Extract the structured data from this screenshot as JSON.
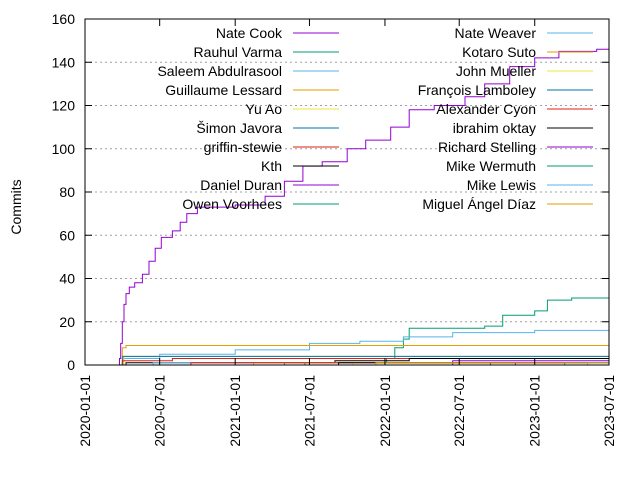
{
  "chart_data": {
    "type": "line",
    "ylabel": "Commits",
    "xlabel": "",
    "title": "",
    "xlim": [
      "2020-01-01",
      "2023-07-01"
    ],
    "ylim": [
      0,
      160
    ],
    "yticks": [
      0,
      20,
      40,
      60,
      80,
      100,
      120,
      140,
      160
    ],
    "xticks": [
      "2020-01-01",
      "2020-07-01",
      "2021-01-01",
      "2021-07-01",
      "2022-01-01",
      "2022-07-01",
      "2023-01-01",
      "2023-07-01"
    ],
    "grid": "horizontal-dotted",
    "legend_placement": "top, two columns",
    "series": [
      {
        "name": "Nate Cook",
        "color": "#9400d3",
        "step": true,
        "points": [
          [
            "2020-03-20",
            0
          ],
          [
            "2020-03-25",
            3
          ],
          [
            "2020-03-28",
            10
          ],
          [
            "2020-04-01",
            20
          ],
          [
            "2020-04-05",
            28
          ],
          [
            "2020-04-10",
            33
          ],
          [
            "2020-04-18",
            36
          ],
          [
            "2020-05-01",
            38
          ],
          [
            "2020-05-20",
            42
          ],
          [
            "2020-06-05",
            48
          ],
          [
            "2020-06-20",
            54
          ],
          [
            "2020-07-05",
            59
          ],
          [
            "2020-08-01",
            62
          ],
          [
            "2020-08-20",
            66
          ],
          [
            "2020-09-05",
            70
          ],
          [
            "2020-10-01",
            73
          ],
          [
            "2021-01-01",
            74
          ],
          [
            "2021-03-15",
            78
          ],
          [
            "2021-05-01",
            85
          ],
          [
            "2021-06-15",
            92
          ],
          [
            "2021-08-01",
            94
          ],
          [
            "2021-10-01",
            100
          ],
          [
            "2021-11-15",
            104
          ],
          [
            "2022-01-15",
            110
          ],
          [
            "2022-03-01",
            118
          ],
          [
            "2022-05-01",
            120
          ],
          [
            "2022-07-15",
            124
          ],
          [
            "2022-09-01",
            130
          ],
          [
            "2022-11-01",
            138
          ],
          [
            "2023-01-01",
            142
          ],
          [
            "2023-03-01",
            145
          ],
          [
            "2023-06-01",
            146
          ],
          [
            "2023-07-01",
            146
          ]
        ]
      },
      {
        "name": "Rauhul Varma",
        "color": "#009e73",
        "step": true,
        "points": [
          [
            "2021-01-15",
            0
          ],
          [
            "2021-05-01",
            1
          ],
          [
            "2022-01-05",
            3
          ],
          [
            "2022-01-25",
            8
          ],
          [
            "2022-02-15",
            12
          ],
          [
            "2022-03-01",
            17
          ],
          [
            "2022-09-01",
            18
          ],
          [
            "2022-10-15",
            23
          ],
          [
            "2023-01-01",
            25
          ],
          [
            "2023-02-01",
            30
          ],
          [
            "2023-04-01",
            31
          ],
          [
            "2023-07-01",
            31
          ]
        ]
      },
      {
        "name": "Saleem Abdulrasool",
        "color": "#56b4e9",
        "step": true,
        "points": [
          [
            "2020-03-25",
            0
          ],
          [
            "2020-04-01",
            3
          ],
          [
            "2020-07-01",
            5
          ],
          [
            "2021-01-01",
            7
          ],
          [
            "2021-07-01",
            10
          ],
          [
            "2021-11-01",
            11
          ],
          [
            "2022-02-15",
            13
          ],
          [
            "2022-06-15",
            15
          ],
          [
            "2023-01-01",
            16
          ],
          [
            "2023-07-01",
            16
          ]
        ]
      },
      {
        "name": "Guillaume Lessard",
        "color": "#e69f00",
        "step": true,
        "points": [
          [
            "2020-03-25",
            0
          ],
          [
            "2020-04-01",
            8
          ],
          [
            "2020-04-10",
            9
          ],
          [
            "2023-07-01",
            9
          ]
        ]
      },
      {
        "name": "Yu Ao",
        "color": "#f0e442",
        "step": true,
        "points": [
          [
            "2020-04-01",
            0
          ],
          [
            "2020-04-05",
            4
          ],
          [
            "2023-07-01",
            4
          ]
        ]
      },
      {
        "name": "Šimon Javora",
        "color": "#0072b2",
        "step": true,
        "points": [
          [
            "2020-03-28",
            0
          ],
          [
            "2020-04-02",
            4
          ],
          [
            "2023-07-01",
            4
          ]
        ]
      },
      {
        "name": "griffin-stewie",
        "color": "#e51e10",
        "step": true,
        "points": [
          [
            "2020-03-25",
            0
          ],
          [
            "2020-04-01",
            2
          ],
          [
            "2020-08-01",
            3
          ],
          [
            "2023-07-01",
            3
          ]
        ]
      },
      {
        "name": "Kth",
        "color": "#000000",
        "step": true,
        "points": [
          [
            "2020-04-01",
            0
          ],
          [
            "2020-04-10",
            1
          ],
          [
            "2021-09-01",
            2
          ],
          [
            "2022-03-01",
            3
          ],
          [
            "2023-07-01",
            3
          ]
        ]
      },
      {
        "name": "Daniel Duran",
        "color": "#9400d3",
        "step": true,
        "points": [
          [
            "2022-06-01",
            0
          ],
          [
            "2022-06-15",
            2
          ],
          [
            "2023-07-01",
            2
          ]
        ]
      },
      {
        "name": "Owen Voorhees",
        "color": "#009e73",
        "step": true,
        "points": [
          [
            "2021-06-01",
            0
          ],
          [
            "2021-06-20",
            1
          ],
          [
            "2023-07-01",
            1
          ]
        ]
      },
      {
        "name": "Nate Weaver",
        "color": "#56b4e9",
        "step": true,
        "points": [
          [
            "2020-06-01",
            0
          ],
          [
            "2020-06-15",
            1
          ],
          [
            "2023-07-01",
            1
          ]
        ]
      },
      {
        "name": "Kotaro Suto",
        "color": "#e69f00",
        "step": true,
        "points": [
          [
            "2021-02-01",
            0
          ],
          [
            "2021-02-15",
            1
          ],
          [
            "2023-07-01",
            1
          ]
        ]
      },
      {
        "name": "John Mueller",
        "color": "#f0e442",
        "step": true,
        "points": [
          [
            "2021-10-01",
            0
          ],
          [
            "2021-10-15",
            1
          ],
          [
            "2023-07-01",
            1
          ]
        ]
      },
      {
        "name": "François Lamboley",
        "color": "#0072b2",
        "step": true,
        "points": [
          [
            "2022-09-01",
            0
          ],
          [
            "2022-09-15",
            1
          ],
          [
            "2023-07-01",
            1
          ]
        ]
      },
      {
        "name": "Alexander Cyon",
        "color": "#e51e10",
        "step": true,
        "points": [
          [
            "2020-09-01",
            0
          ],
          [
            "2020-09-15",
            1
          ],
          [
            "2023-07-01",
            1
          ]
        ]
      },
      {
        "name": "ibrahim oktay",
        "color": "#000000",
        "step": true,
        "points": [
          [
            "2021-09-01",
            0
          ],
          [
            "2021-09-10",
            1
          ],
          [
            "2023-07-01",
            1
          ]
        ]
      },
      {
        "name": "Richard Stelling",
        "color": "#9400d3",
        "step": true,
        "points": [
          [
            "2022-11-01",
            0
          ],
          [
            "2022-11-15",
            1
          ],
          [
            "2023-07-01",
            1
          ]
        ]
      },
      {
        "name": "Mike Wermuth",
        "color": "#009e73",
        "step": true,
        "points": [
          [
            "2023-03-01",
            0
          ],
          [
            "2023-03-15",
            1
          ],
          [
            "2023-07-01",
            1
          ]
        ]
      },
      {
        "name": "Mike Lewis",
        "color": "#56b4e9",
        "step": true,
        "points": [
          [
            "2023-05-01",
            0
          ],
          [
            "2023-05-10",
            1
          ],
          [
            "2023-07-01",
            1
          ]
        ]
      },
      {
        "name": "Miguel Ángel Díaz",
        "color": "#e69f00",
        "step": true,
        "points": [
          [
            "2021-12-01",
            0
          ],
          [
            "2021-12-10",
            1
          ],
          [
            "2023-07-01",
            1
          ]
        ]
      }
    ]
  }
}
